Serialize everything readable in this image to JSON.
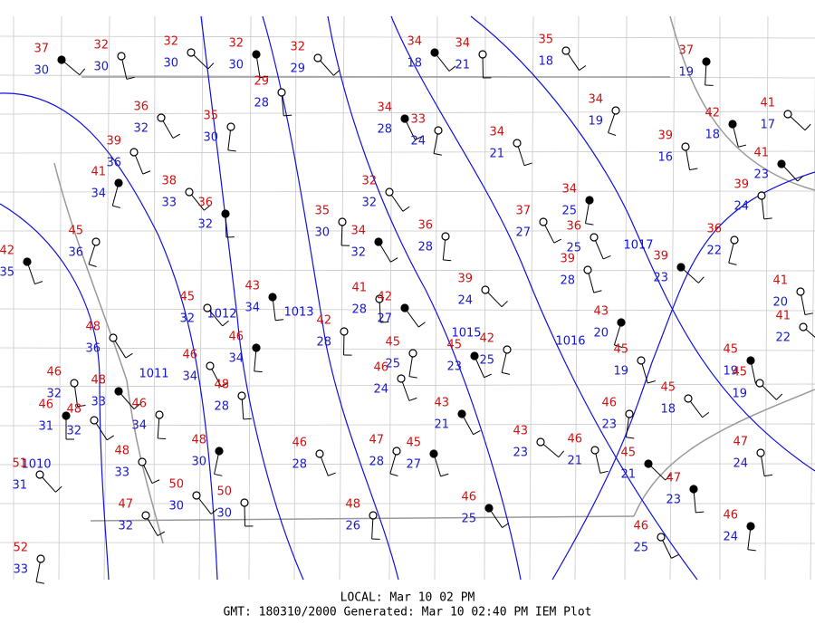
{
  "stations": [
    {
      "temperature": 37,
      "dewpoint": 30
    },
    {
      "temperature": 32,
      "dewpoint": 30
    },
    {
      "temperature": 32,
      "dewpoint": 30
    },
    {
      "temperature": 32,
      "dewpoint": 30
    },
    {
      "temperature": 32,
      "dewpoint": 29
    },
    {
      "temperature": 29,
      "dewpoint": 28
    },
    {
      "temperature": 34,
      "dewpoint": 18
    },
    {
      "temperature": 34,
      "dewpoint": 21
    },
    {
      "temperature": 35,
      "dewpoint": 18
    },
    {
      "temperature": 37,
      "dewpoint": 19
    },
    {
      "temperature": 36,
      "dewpoint": 32
    },
    {
      "temperature": 35,
      "dewpoint": 30
    },
    {
      "temperature": 34,
      "dewpoint": 28
    },
    {
      "temperature": 33,
      "dewpoint": 24
    },
    {
      "temperature": 39,
      "dewpoint": 36
    },
    {
      "temperature": 41,
      "dewpoint": 34
    },
    {
      "temperature": 34,
      "dewpoint": 21
    },
    {
      "temperature": 34,
      "dewpoint": 19
    },
    {
      "temperature": 42,
      "dewpoint": 18
    },
    {
      "temperature": 41,
      "dewpoint": 17
    },
    {
      "temperature": 39,
      "dewpoint": 16
    },
    {
      "temperature": 41,
      "dewpoint": 23
    },
    {
      "temperature": 39,
      "dewpoint": 24
    },
    {
      "temperature": 38,
      "dewpoint": 33
    },
    {
      "temperature": 36,
      "dewpoint": 32
    },
    {
      "temperature": 32,
      "dewpoint": 32
    },
    {
      "temperature": 35,
      "dewpoint": 30
    },
    {
      "temperature": 34,
      "dewpoint": 32
    },
    {
      "temperature": 36,
      "dewpoint": 28
    },
    {
      "temperature": 37,
      "dewpoint": 27
    },
    {
      "temperature": 34,
      "dewpoint": 25
    },
    {
      "temperature": 36,
      "dewpoint": 25
    },
    {
      "temperature": 36,
      "dewpoint": 22
    },
    {
      "temperature": 42,
      "dewpoint": 35
    },
    {
      "temperature": 45,
      "dewpoint": 36
    },
    {
      "temperature": 39,
      "dewpoint": 28
    },
    {
      "temperature": 39,
      "dewpoint": 23
    },
    {
      "temperature": 41,
      "dewpoint": 20
    },
    {
      "temperature": 39,
      "dewpoint": 24
    },
    {
      "temperature": 43,
      "dewpoint": 34
    },
    {
      "temperature": 45,
      "dewpoint": 32
    },
    {
      "temperature": 41,
      "dewpoint": 28
    },
    {
      "temperature": 42,
      "dewpoint": 27
    },
    {
      "temperature": 42,
      "dewpoint": 28
    },
    {
      "temperature": 48,
      "dewpoint": 36
    },
    {
      "temperature": 46,
      "dewpoint": 34
    },
    {
      "temperature": 46,
      "dewpoint": 34
    },
    {
      "temperature": 45,
      "dewpoint": 25
    },
    {
      "temperature": 45,
      "dewpoint": 23
    },
    {
      "temperature": 42,
      "dewpoint": 25
    },
    {
      "temperature": 46,
      "dewpoint": 24
    },
    {
      "temperature": 43,
      "dewpoint": 20
    },
    {
      "temperature": 45,
      "dewpoint": 19
    },
    {
      "temperature": 41,
      "dewpoint": 22
    },
    {
      "temperature": 45,
      "dewpoint": 19
    },
    {
      "temperature": 45,
      "dewpoint": 19
    },
    {
      "temperature": 46,
      "dewpoint": 32
    },
    {
      "temperature": 48,
      "dewpoint": 33
    },
    {
      "temperature": 48,
      "dewpoint": 28
    },
    {
      "temperature": 45,
      "dewpoint": 18
    },
    {
      "temperature": 46,
      "dewpoint": 31
    },
    {
      "temperature": 48,
      "dewpoint": 32
    },
    {
      "temperature": 46,
      "dewpoint": 34
    },
    {
      "temperature": 43,
      "dewpoint": 21
    },
    {
      "temperature": 46,
      "dewpoint": 23
    },
    {
      "temperature": 48,
      "dewpoint": 33
    },
    {
      "temperature": 48,
      "dewpoint": 30
    },
    {
      "temperature": 46,
      "dewpoint": 28
    },
    {
      "temperature": 47,
      "dewpoint": 28
    },
    {
      "temperature": 45,
      "dewpoint": 27
    },
    {
      "temperature": 43,
      "dewpoint": 23
    },
    {
      "temperature": 46,
      "dewpoint": 21
    },
    {
      "temperature": 45,
      "dewpoint": 21
    },
    {
      "temperature": 47,
      "dewpoint": 24
    },
    {
      "temperature": 51,
      "dewpoint": 31
    },
    {
      "temperature": 47,
      "dewpoint": 23
    },
    {
      "temperature": 50,
      "dewpoint": 30
    },
    {
      "temperature": 50,
      "dewpoint": 30
    },
    {
      "temperature": 46,
      "dewpoint": 25
    },
    {
      "temperature": 48,
      "dewpoint": 26
    },
    {
      "temperature": 47,
      "dewpoint": 32
    },
    {
      "temperature": 46,
      "dewpoint": 24
    },
    {
      "temperature": 46,
      "dewpoint": 25
    },
    {
      "temperature": 52,
      "dewpoint": 33
    }
  ],
  "isobars": [
    1010,
    1011,
    1012,
    1013,
    1015,
    1016,
    1017
  ],
  "footer": {
    "local": "LOCAL: Mar 10 02 PM",
    "gmt": "GMT: 180310/2000 Generated: Mar 10 02:40 PM IEM Plot"
  }
}
